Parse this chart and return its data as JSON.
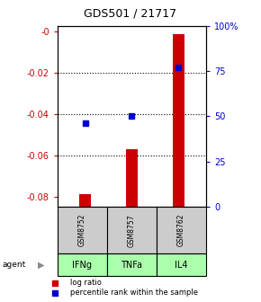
{
  "title": "GDS501 / 21717",
  "samples": [
    "GSM8752",
    "GSM8757",
    "GSM8762"
  ],
  "agents": [
    "IFNg",
    "TNFa",
    "IL4"
  ],
  "x_positions": [
    1,
    2,
    3
  ],
  "log_ratios": [
    -0.079,
    -0.057,
    -0.001
  ],
  "percentile_ranks": [
    46,
    50,
    77
  ],
  "ylim_left": [
    -0.085,
    0.003
  ],
  "ylim_right": [
    0,
    100
  ],
  "yticks_left": [
    -0.08,
    -0.06,
    -0.04,
    -0.02,
    0.0
  ],
  "ytick_labels_left": [
    "-0.08",
    "-0.06",
    "-0.04",
    "-0.02",
    "-0"
  ],
  "yticks_right": [
    0,
    25,
    50,
    75,
    100
  ],
  "ytick_labels_right": [
    "0",
    "25",
    "50",
    "75",
    "100%"
  ],
  "bar_color": "#cc0000",
  "dot_color": "#0000cc",
  "sample_bg_color": "#cccccc",
  "agent_bg_color": "#aaffaa",
  "bar_bottom": -0.085,
  "bar_width": 0.25
}
